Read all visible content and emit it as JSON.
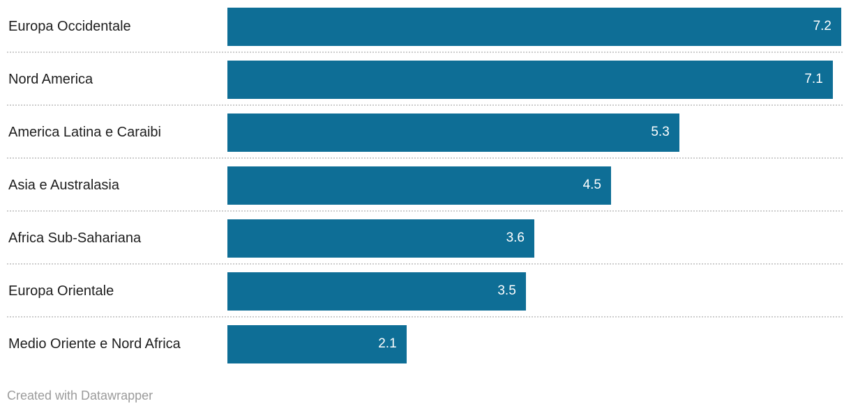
{
  "chart_data": {
    "type": "bar",
    "orientation": "horizontal",
    "title": "",
    "xlabel": "",
    "ylabel": "",
    "categories": [
      "Europa Occidentale",
      "Nord America",
      "America Latina e Caraibi",
      "Asia e Australasia",
      "Africa Sub-Sahariana",
      "Europa Orientale",
      "Medio Oriente e Nord Africa"
    ],
    "values": [
      7.2,
      7.1,
      5.3,
      4.5,
      3.6,
      3.5,
      2.1
    ],
    "value_labels": [
      "7.2",
      "7.1",
      "5.3",
      "4.5",
      "3.6",
      "3.5",
      "2.1"
    ],
    "xlim": [
      0,
      7.2
    ],
    "grid": "off",
    "legend": "none",
    "value_label_position": "inside-end",
    "row_separator": "dotted"
  },
  "colors": {
    "bar": "#0e6e96",
    "bar_value_text": "#ffffff",
    "category_label_text": "#1d1d1d",
    "separator": "#cccccc",
    "attribution_text": "#9b9b9b",
    "background": "#ffffff"
  },
  "footer": {
    "attribution": "Created with Datawrapper"
  }
}
